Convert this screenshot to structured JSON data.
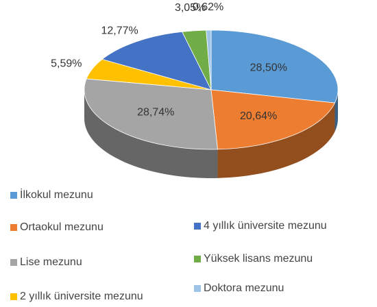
{
  "chart_data": {
    "type": "pie3d",
    "categories": [
      "İlkokul mezunu",
      "Ortaokul mezunu",
      "Lise mezunu",
      "2 yıllık üniversite mezunu",
      "4 yıllık üniversite mezunu",
      "Yüksek lisans mezunu",
      "Doktora mezunu"
    ],
    "values": [
      28.5,
      20.64,
      28.74,
      5.59,
      12.77,
      3.05,
      0.62
    ],
    "value_labels": [
      "28,50%",
      "20,64%",
      "28,74%",
      "5,59%",
      "12,77%",
      "3,05%",
      "0,62%"
    ],
    "colors": [
      "#5b9bd5",
      "#ed7d31",
      "#a5a5a5",
      "#ffc000",
      "#4472c4",
      "#70ad47",
      "#9dc3e6"
    ],
    "legend": "bottom"
  }
}
